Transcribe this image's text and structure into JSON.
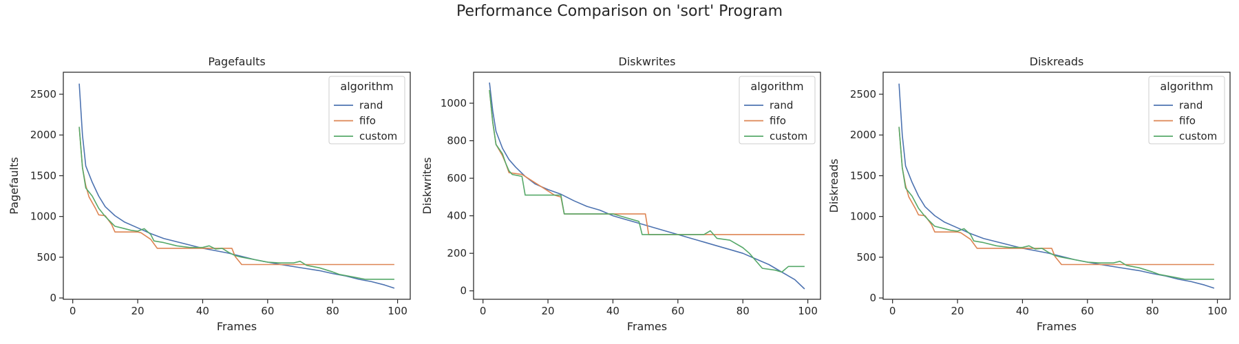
{
  "figure": {
    "title": "Performance Comparison on 'sort' Program"
  },
  "colors": {
    "rand": "#4c72b0",
    "fifo": "#dd8452",
    "custom": "#55a868"
  },
  "chart_data": [
    {
      "type": "line",
      "title": "Pagefaults",
      "xlabel": "Frames",
      "ylabel": "Pagefaults",
      "xlim": [
        -2.9,
        103.9
      ],
      "ylim": [
        -16,
        2770
      ],
      "xticks": [
        0,
        20,
        40,
        60,
        80,
        100
      ],
      "yticks": [
        0,
        500,
        1000,
        1500,
        2000,
        2500
      ],
      "grid": false,
      "legend": {
        "title": "algorithm",
        "position": "top-right"
      },
      "series": [
        {
          "name": "rand",
          "color": "#4c72b0",
          "points": [
            [
              2,
              2630
            ],
            [
              3,
              2000
            ],
            [
              4,
              1620
            ],
            [
              6,
              1420
            ],
            [
              8,
              1250
            ],
            [
              10,
              1120
            ],
            [
              13,
              1010
            ],
            [
              16,
              930
            ],
            [
              20,
              860
            ],
            [
              24,
              790
            ],
            [
              28,
              730
            ],
            [
              32,
              690
            ],
            [
              36,
              650
            ],
            [
              40,
              610
            ],
            [
              44,
              580
            ],
            [
              48,
              550
            ],
            [
              52,
              510
            ],
            [
              56,
              470
            ],
            [
              60,
              440
            ],
            [
              64,
              410
            ],
            [
              68,
              385
            ],
            [
              72,
              360
            ],
            [
              76,
              335
            ],
            [
              80,
              300
            ],
            [
              84,
              270
            ],
            [
              88,
              230
            ],
            [
              92,
              200
            ],
            [
              96,
              160
            ],
            [
              99,
              120
            ]
          ]
        },
        {
          "name": "fifo",
          "color": "#dd8452",
          "points": [
            [
              2,
              2100
            ],
            [
              3,
              1600
            ],
            [
              4,
              1380
            ],
            [
              5,
              1240
            ],
            [
              7,
              1100
            ],
            [
              8,
              1020
            ],
            [
              10,
              1010
            ],
            [
              12,
              900
            ],
            [
              13,
              810
            ],
            [
              20,
              810
            ],
            [
              21,
              800
            ],
            [
              24,
              720
            ],
            [
              26,
              610
            ],
            [
              49,
              610
            ],
            [
              50,
              510
            ],
            [
              52,
              410
            ],
            [
              99,
              410
            ]
          ]
        },
        {
          "name": "custom",
          "color": "#55a868",
          "points": [
            [
              2,
              2100
            ],
            [
              3,
              1600
            ],
            [
              4,
              1350
            ],
            [
              6,
              1250
            ],
            [
              8,
              1100
            ],
            [
              10,
              1000
            ],
            [
              13,
              880
            ],
            [
              15,
              860
            ],
            [
              18,
              830
            ],
            [
              20,
              820
            ],
            [
              22,
              850
            ],
            [
              24,
              780
            ],
            [
              25,
              700
            ],
            [
              28,
              680
            ],
            [
              32,
              640
            ],
            [
              36,
              620
            ],
            [
              40,
              620
            ],
            [
              42,
              640
            ],
            [
              44,
              600
            ],
            [
              46,
              610
            ],
            [
              48,
              560
            ],
            [
              50,
              520
            ],
            [
              52,
              500
            ],
            [
              56,
              470
            ],
            [
              60,
              440
            ],
            [
              64,
              430
            ],
            [
              68,
              430
            ],
            [
              70,
              450
            ],
            [
              72,
              400
            ],
            [
              76,
              370
            ],
            [
              80,
              320
            ],
            [
              82,
              290
            ],
            [
              86,
              260
            ],
            [
              90,
              230
            ],
            [
              94,
              230
            ],
            [
              99,
              230
            ]
          ]
        }
      ]
    },
    {
      "type": "line",
      "title": "Diskwrites",
      "xlabel": "Frames",
      "ylabel": "Diskwrites",
      "xlim": [
        -2.9,
        103.9
      ],
      "ylim": [
        -45,
        1165
      ],
      "xticks": [
        0,
        20,
        40,
        60,
        80,
        100
      ],
      "yticks": [
        0,
        200,
        400,
        600,
        800,
        1000
      ],
      "grid": false,
      "legend": {
        "title": "algorithm",
        "position": "top-right"
      },
      "series": [
        {
          "name": "rand",
          "color": "#4c72b0",
          "points": [
            [
              2,
              1110
            ],
            [
              3,
              960
            ],
            [
              4,
              850
            ],
            [
              6,
              760
            ],
            [
              8,
              700
            ],
            [
              10,
              660
            ],
            [
              13,
              610
            ],
            [
              16,
              570
            ],
            [
              20,
              540
            ],
            [
              24,
              515
            ],
            [
              28,
              480
            ],
            [
              32,
              450
            ],
            [
              36,
              430
            ],
            [
              40,
              400
            ],
            [
              44,
              380
            ],
            [
              48,
              360
            ],
            [
              52,
              340
            ],
            [
              56,
              320
            ],
            [
              60,
              300
            ],
            [
              64,
              280
            ],
            [
              68,
              260
            ],
            [
              72,
              240
            ],
            [
              76,
              220
            ],
            [
              80,
              200
            ],
            [
              84,
              170
            ],
            [
              88,
              140
            ],
            [
              92,
              100
            ],
            [
              96,
              60
            ],
            [
              99,
              10
            ]
          ]
        },
        {
          "name": "fifo",
          "color": "#dd8452",
          "points": [
            [
              2,
              1070
            ],
            [
              3,
              900
            ],
            [
              4,
              780
            ],
            [
              6,
              720
            ],
            [
              7,
              680
            ],
            [
              8,
              630
            ],
            [
              12,
              620
            ],
            [
              13,
              610
            ],
            [
              22,
              510
            ],
            [
              24,
              500
            ],
            [
              25,
              410
            ],
            [
              50,
              410
            ],
            [
              51,
              300
            ],
            [
              99,
              300
            ]
          ]
        },
        {
          "name": "custom",
          "color": "#55a868",
          "points": [
            [
              2,
              1070
            ],
            [
              3,
              900
            ],
            [
              4,
              780
            ],
            [
              6,
              730
            ],
            [
              7,
              680
            ],
            [
              8,
              640
            ],
            [
              9,
              620
            ],
            [
              12,
              610
            ],
            [
              13,
              510
            ],
            [
              24,
              510
            ],
            [
              25,
              410
            ],
            [
              40,
              410
            ],
            [
              44,
              390
            ],
            [
              48,
              370
            ],
            [
              49,
              300
            ],
            [
              60,
              300
            ],
            [
              68,
              300
            ],
            [
              70,
              320
            ],
            [
              72,
              280
            ],
            [
              76,
              270
            ],
            [
              80,
              230
            ],
            [
              82,
              200
            ],
            [
              84,
              160
            ],
            [
              86,
              120
            ],
            [
              90,
              110
            ],
            [
              92,
              100
            ],
            [
              94,
              130
            ],
            [
              99,
              130
            ]
          ]
        }
      ]
    },
    {
      "type": "line",
      "title": "Diskreads",
      "xlabel": "Frames",
      "ylabel": "Diskreads",
      "xlim": [
        -2.9,
        103.9
      ],
      "ylim": [
        -16,
        2770
      ],
      "xticks": [
        0,
        20,
        40,
        60,
        80,
        100
      ],
      "yticks": [
        0,
        500,
        1000,
        1500,
        2000,
        2500
      ],
      "grid": false,
      "legend": {
        "title": "algorithm",
        "position": "top-right"
      },
      "series": [
        {
          "name": "rand",
          "color": "#4c72b0",
          "points": [
            [
              2,
              2630
            ],
            [
              3,
              2000
            ],
            [
              4,
              1620
            ],
            [
              6,
              1420
            ],
            [
              8,
              1250
            ],
            [
              10,
              1120
            ],
            [
              13,
              1010
            ],
            [
              16,
              930
            ],
            [
              20,
              860
            ],
            [
              24,
              790
            ],
            [
              28,
              730
            ],
            [
              32,
              690
            ],
            [
              36,
              650
            ],
            [
              40,
              610
            ],
            [
              44,
              580
            ],
            [
              48,
              550
            ],
            [
              52,
              510
            ],
            [
              56,
              470
            ],
            [
              60,
              440
            ],
            [
              64,
              410
            ],
            [
              68,
              385
            ],
            [
              72,
              360
            ],
            [
              76,
              335
            ],
            [
              80,
              300
            ],
            [
              84,
              270
            ],
            [
              88,
              230
            ],
            [
              92,
              200
            ],
            [
              96,
              160
            ],
            [
              99,
              120
            ]
          ]
        },
        {
          "name": "fifo",
          "color": "#dd8452",
          "points": [
            [
              2,
              2100
            ],
            [
              3,
              1600
            ],
            [
              4,
              1380
            ],
            [
              5,
              1240
            ],
            [
              7,
              1100
            ],
            [
              8,
              1020
            ],
            [
              10,
              1010
            ],
            [
              12,
              900
            ],
            [
              13,
              810
            ],
            [
              20,
              810
            ],
            [
              21,
              800
            ],
            [
              24,
              720
            ],
            [
              26,
              610
            ],
            [
              49,
              610
            ],
            [
              50,
              510
            ],
            [
              52,
              410
            ],
            [
              99,
              410
            ]
          ]
        },
        {
          "name": "custom",
          "color": "#55a868",
          "points": [
            [
              2,
              2100
            ],
            [
              3,
              1600
            ],
            [
              4,
              1350
            ],
            [
              6,
              1250
            ],
            [
              8,
              1100
            ],
            [
              10,
              1000
            ],
            [
              13,
              880
            ],
            [
              15,
              860
            ],
            [
              18,
              830
            ],
            [
              20,
              820
            ],
            [
              22,
              850
            ],
            [
              24,
              780
            ],
            [
              25,
              700
            ],
            [
              28,
              680
            ],
            [
              32,
              640
            ],
            [
              36,
              620
            ],
            [
              40,
              620
            ],
            [
              42,
              640
            ],
            [
              44,
              600
            ],
            [
              46,
              610
            ],
            [
              48,
              560
            ],
            [
              50,
              520
            ],
            [
              52,
              500
            ],
            [
              56,
              470
            ],
            [
              60,
              440
            ],
            [
              64,
              430
            ],
            [
              68,
              430
            ],
            [
              70,
              450
            ],
            [
              72,
              400
            ],
            [
              76,
              370
            ],
            [
              80,
              320
            ],
            [
              82,
              290
            ],
            [
              86,
              260
            ],
            [
              90,
              230
            ],
            [
              94,
              230
            ],
            [
              99,
              230
            ]
          ]
        }
      ]
    }
  ]
}
